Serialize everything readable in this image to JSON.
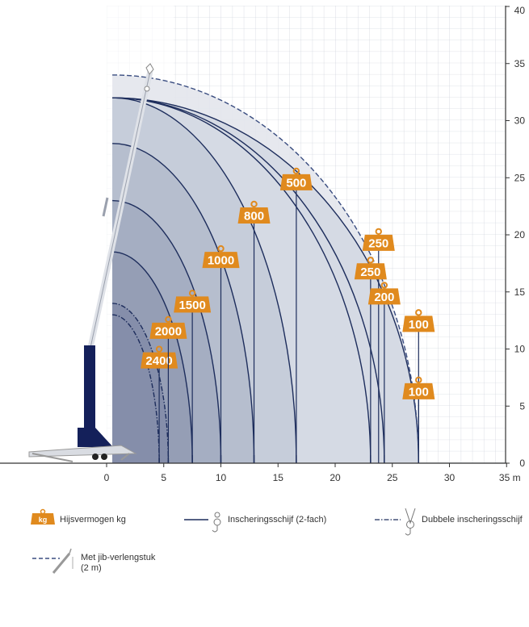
{
  "chart_data": {
    "type": "line",
    "title": "",
    "x_unit": "m",
    "xlim": [
      -10,
      35
    ],
    "ylim": [
      0,
      40
    ],
    "x_ticks": [
      "0",
      "5",
      "10",
      "15",
      "20",
      "25",
      "30",
      "35 m"
    ],
    "y_ticks": [
      "0",
      "5",
      "10",
      "15",
      "20",
      "25",
      "30",
      "35",
      "40"
    ],
    "grid": true,
    "legend_position": "bottom",
    "series": [
      {
        "label": "2400",
        "reach": 4.6,
        "max_height": 13.0,
        "line": "dash-dot"
      },
      {
        "label": "2000",
        "reach": 5.4,
        "max_height": 14.0,
        "line": "dash-dot"
      },
      {
        "label": "1500",
        "reach": 7.5,
        "max_height": 18.5,
        "line": "solid"
      },
      {
        "label": "1000",
        "reach": 10.0,
        "max_height": 23.0,
        "line": "solid"
      },
      {
        "label": "800",
        "reach": 12.9,
        "max_height": 28.0,
        "line": "solid"
      },
      {
        "label": "500",
        "reach": 16.6,
        "max_height": 32.0,
        "line": "solid"
      },
      {
        "label": "250",
        "reach": 23.1,
        "max_height": 32.0,
        "line": "solid"
      },
      {
        "label": "200",
        "reach": 24.3,
        "max_height": 32.0,
        "line": "solid"
      },
      {
        "label": "100",
        "reach": 27.3,
        "max_height": 32.0,
        "line": "solid"
      },
      {
        "label": "250",
        "reach": 23.1,
        "max_height": 34.0,
        "line": "dashed"
      },
      {
        "label": "100",
        "reach": 27.3,
        "max_height": 34.0,
        "line": "dashed"
      }
    ],
    "weight_tags": [
      {
        "text": "2400",
        "x": 4.6,
        "y": 9.0
      },
      {
        "text": "2000",
        "x": 5.4,
        "y": 11.6
      },
      {
        "text": "1500",
        "x": 7.5,
        "y": 13.9
      },
      {
        "text": "1000",
        "x": 10.0,
        "y": 17.8
      },
      {
        "text": "800",
        "x": 12.9,
        "y": 21.7
      },
      {
        "text": "500",
        "x": 16.6,
        "y": 24.6
      },
      {
        "text": "250",
        "x": 23.8,
        "y": 19.3
      },
      {
        "text": "250",
        "x": 23.1,
        "y": 16.8
      },
      {
        "text": "200",
        "x": 24.3,
        "y": 14.6
      },
      {
        "text": "100",
        "x": 27.3,
        "y": 12.2
      },
      {
        "text": "100",
        "x": 27.3,
        "y": 6.3
      }
    ]
  },
  "legend": {
    "weight_badge": "kg",
    "weight": "Hijsvermogen kg",
    "single_reeving": "Inscheringsschijf (2-fach)",
    "double_reeving": "Dubbele inscheringsschijf",
    "jib_line1": "Met jib-verlengstuk",
    "jib_line2": "(2 m)"
  },
  "colors": {
    "tag": "#e08a1e",
    "curve": "#1d2d5c",
    "dashed": "#3a4d80",
    "grid": "#c4c9d4",
    "tower": "#14205a"
  }
}
